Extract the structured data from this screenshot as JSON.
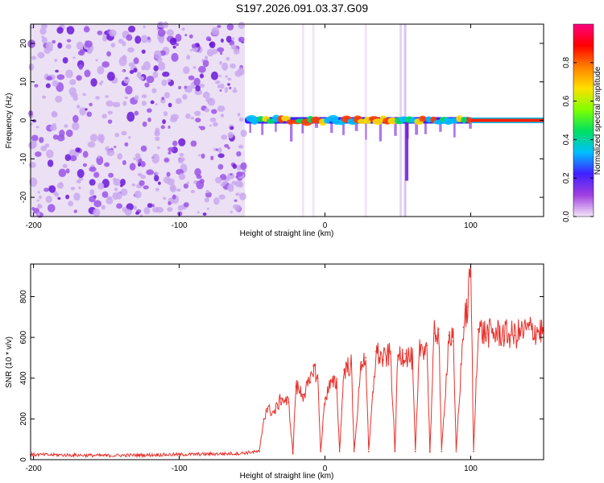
{
  "title": "S197.2026.091.03.37.G09",
  "chart_data": [
    {
      "type": "heatmap",
      "xlabel": "Height of straight line (km)",
      "ylabel": "Frequency (Hz)",
      "xlim": [
        -202,
        150
      ],
      "ylim": [
        -25,
        25
      ],
      "xticks": [
        {
          "value": -200,
          "label": "-200"
        },
        {
          "value": -100,
          "label": "-100"
        },
        {
          "value": 0,
          "label": "0"
        },
        {
          "value": 100,
          "label": "100"
        }
      ],
      "yticks": [
        {
          "value": -20,
          "label": "-20"
        },
        {
          "value": -10,
          "label": "-10"
        },
        {
          "value": 0,
          "label": "0"
        },
        {
          "value": 10,
          "label": "10"
        },
        {
          "value": 20,
          "label": "20"
        }
      ],
      "noise_region_km": [
        -202,
        -55
      ],
      "signal_track_hz": 0,
      "signal_onset_km": -55,
      "colorbar": {
        "label": "Normalized spectral amplitude",
        "range": [
          0,
          1
        ],
        "ticks": [
          {
            "value": 0.0,
            "label": "0.0"
          },
          {
            "value": 0.2,
            "label": "0.2"
          },
          {
            "value": 0.4,
            "label": "0.4"
          },
          {
            "value": 0.6,
            "label": "0.6"
          },
          {
            "value": 0.8,
            "label": "0.8"
          }
        ],
        "colors": [
          "#f4e6f8",
          "#a040e0",
          "#4020ff",
          "#00c0ff",
          "#00e060",
          "#80ff00",
          "#ffe000",
          "#ff8000",
          "#ff0000",
          "#ff0080"
        ]
      }
    },
    {
      "type": "line",
      "xlabel": "Height of straight line (km)",
      "ylabel": "SNR (10 * v/v)",
      "xlim": [
        -202,
        150
      ],
      "ylim": [
        0,
        960
      ],
      "color": "#e8302a",
      "xticks": [
        {
          "value": -200,
          "label": "-200"
        },
        {
          "value": -100,
          "label": "-100"
        },
        {
          "value": 0,
          "label": "0"
        },
        {
          "value": 100,
          "label": "100"
        }
      ],
      "yticks": [
        {
          "value": 0,
          "label": "0"
        },
        {
          "value": 200,
          "label": "200"
        },
        {
          "value": 400,
          "label": "400"
        },
        {
          "value": 600,
          "label": "600"
        },
        {
          "value": 800,
          "label": "800"
        }
      ],
      "series": [
        {
          "name": "SNR",
          "x": [
            -202,
            -150,
            -100,
            -60,
            -45,
            -42,
            -40,
            -35,
            -30,
            -25,
            -22,
            -20,
            -15,
            -10,
            -8,
            -5,
            -3,
            0,
            3,
            8,
            10,
            13,
            18,
            20,
            25,
            28,
            30,
            35,
            40,
            45,
            48,
            50,
            55,
            60,
            62,
            65,
            70,
            72,
            75,
            78,
            80,
            85,
            88,
            90,
            95,
            98,
            100,
            102,
            105,
            110,
            120,
            130,
            140,
            150
          ],
          "y": [
            25,
            20,
            25,
            30,
            40,
            200,
            250,
            230,
            300,
            280,
            30,
            360,
            320,
            380,
            460,
            400,
            40,
            300,
            360,
            380,
            40,
            440,
            470,
            40,
            480,
            500,
            40,
            530,
            490,
            520,
            40,
            510,
            520,
            490,
            40,
            550,
            560,
            40,
            620,
            640,
            40,
            610,
            580,
            40,
            650,
            750,
            960,
            40,
            640,
            620,
            620,
            610,
            640,
            630
          ]
        }
      ]
    }
  ]
}
